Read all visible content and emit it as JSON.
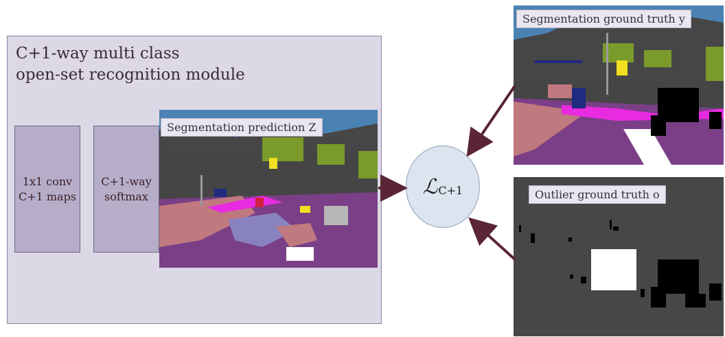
{
  "module": {
    "title_line1": "C+1-way multi class",
    "title_line2": "open-set recognition module"
  },
  "blocks": [
    {
      "line1": "1x1 conv",
      "line2": "C+1 maps"
    },
    {
      "line1": "C+1-way",
      "line2": "softmax"
    }
  ],
  "prediction": {
    "label": "Segmentation prediction Z"
  },
  "ground_truth": {
    "label": "Segmentation ground truth y"
  },
  "outlier": {
    "label": "Outlier ground truth o"
  },
  "loss": {
    "symbol": "ℒ",
    "subscript": "C+1"
  },
  "colors": {
    "road": "#7a3f86",
    "sidewalk": "#c0797f",
    "building": "#454545",
    "sky": "#4a82b3",
    "vegetation": "#7a9a2c",
    "marking": "#e82ae0",
    "arrow": "#5a2535"
  }
}
